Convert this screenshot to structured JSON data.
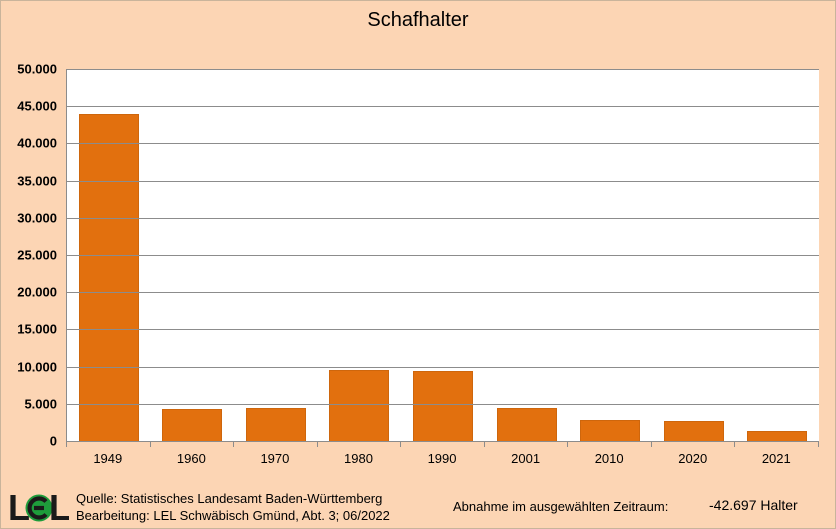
{
  "window": {
    "title": "Schafhalter"
  },
  "colors": {
    "background": "#FCD5B4",
    "bar": "#E2700E",
    "bar_border": "#CE660C",
    "gridline": "#8C8C8C",
    "logo_green": "#1E9C3B",
    "text": "#000000"
  },
  "chart_data": {
    "type": "bar",
    "title": "Schafhalter",
    "categories": [
      "1949",
      "1960",
      "1970",
      "1980",
      "1990",
      "2001",
      "2010",
      "2020",
      "2021"
    ],
    "values": [
      44000,
      4300,
      4400,
      9600,
      9400,
      4500,
      2800,
      2700,
      1300
    ],
    "xlabel": "",
    "ylabel": "",
    "ylim": [
      0,
      50000
    ],
    "ytick_step": 5000,
    "ytick_labels": [
      "0",
      "5.000",
      "10.000",
      "15.000",
      "20.000",
      "25.000",
      "30.000",
      "35.000",
      "40.000",
      "45.000",
      "50.000"
    ],
    "grid": true,
    "legend": "none",
    "plot_background": "#ffffff"
  },
  "footer": {
    "logo": {
      "letter_left": "L",
      "letter_right": "L",
      "circle_glyph": "E"
    },
    "source_line1": "Quelle: Statistisches Landesamt Baden-Württemberg",
    "source_line2": "Bearbeitung: LEL Schwäbisch Gmünd, Abt. 3; 06/2022",
    "summary_label": "Abnahme im ausgewählten Zeitraum:",
    "summary_value": "-42.697 Halter"
  }
}
